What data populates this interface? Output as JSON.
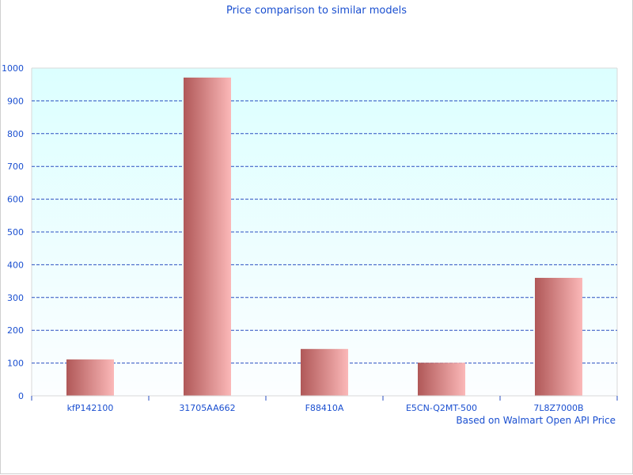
{
  "chart_data": {
    "type": "bar",
    "title": "Price comparison to similar models",
    "categories": [
      "kfP142100",
      "31705AA662",
      "F88410A",
      "E5CN-Q2MT-500",
      "7L8Z7000B"
    ],
    "values": [
      111,
      971,
      143,
      101,
      360
    ],
    "ylim": [
      0,
      1000
    ],
    "yticks": [
      "0",
      "100",
      "200",
      "300",
      "400",
      "500",
      "600",
      "700",
      "800",
      "900",
      "1000"
    ],
    "grid": true,
    "footnote": "Based on Walmart Open API Price",
    "colors": {
      "bar_dark": "#b05858",
      "bar_light": "#fbb8b8",
      "text": "#1a4fd0",
      "grid": "#2a4fc0",
      "plot_bg_top": "#dcffff",
      "plot_bg_bottom": "#fcfeff"
    }
  }
}
